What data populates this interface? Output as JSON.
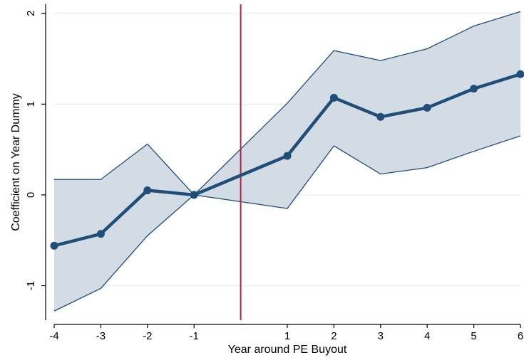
{
  "chart_data": {
    "type": "line",
    "title": "",
    "xlabel": "Year around PE Buyout",
    "ylabel": "Coefficient on Year Dummy",
    "x_ticks": [
      -4,
      -3,
      -2,
      -1,
      1,
      2,
      3,
      4,
      5,
      6
    ],
    "x_tick_labels": [
      "-4",
      "-3",
      "-2",
      "-1",
      "1",
      "2",
      "3",
      "4",
      "5",
      "6"
    ],
    "y_ticks": [
      -1,
      0,
      1,
      2
    ],
    "y_tick_labels": [
      "-1",
      "0",
      "1",
      "2"
    ],
    "xlim": [
      -4,
      6
    ],
    "ylim": [
      -1.38,
      2.1
    ],
    "grid": "horizontal",
    "reference_line": {
      "x": 0,
      "color": "#b0254a"
    },
    "series": [
      {
        "x": [
          -4,
          -3,
          -2,
          -1,
          1,
          2,
          3,
          4,
          5,
          6
        ],
        "values": [
          -0.56,
          -0.43,
          0.05,
          0.0,
          0.43,
          1.07,
          0.86,
          0.96,
          1.17,
          1.33
        ],
        "ci_upper": [
          0.17,
          0.17,
          0.56,
          0.0,
          1.01,
          1.59,
          1.48,
          1.61,
          1.86,
          2.02
        ],
        "ci_lower": [
          -1.28,
          -1.03,
          -0.45,
          0.0,
          -0.15,
          0.54,
          0.23,
          0.3,
          0.48,
          0.65
        ]
      }
    ],
    "colors": {
      "line": "#1f4e79",
      "band_fill": "#d3dbe4",
      "band_edge": "#1f4e79",
      "grid": "#e8ecef",
      "axis": "#000000"
    }
  }
}
